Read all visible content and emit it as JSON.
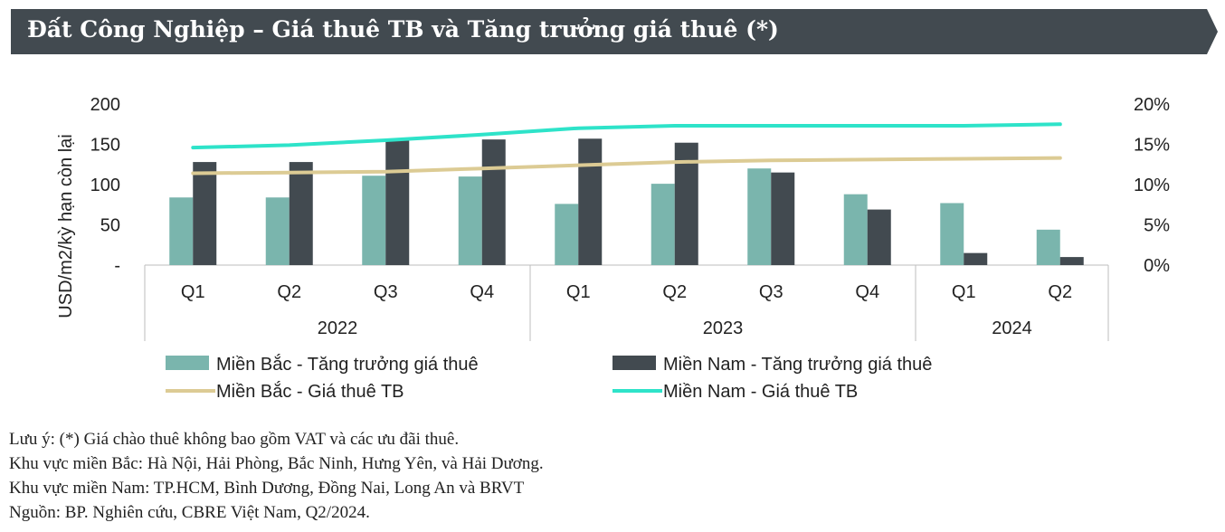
{
  "header": {
    "title": "Đất Công Nghiệp – Giá thuê TB và Tăng trưởng giá thuê (*)",
    "background": "#424a50"
  },
  "chart_data": {
    "type": "bar",
    "ylabel": "USD/m2/kỳ hạn còn lại",
    "y_left_ticks": [
      "-",
      "50",
      "100",
      "150",
      "200"
    ],
    "ylim_left": [
      0,
      200
    ],
    "y_right_ticks": [
      "0%",
      "5%",
      "10%",
      "15%",
      "20%"
    ],
    "ylim_right": [
      0,
      20
    ],
    "categories": [
      "Q1",
      "Q2",
      "Q3",
      "Q4",
      "Q1",
      "Q2",
      "Q3",
      "Q4",
      "Q1",
      "Q2"
    ],
    "groups": [
      {
        "label": "2022",
        "start": 0,
        "end": 3
      },
      {
        "label": "2023",
        "start": 4,
        "end": 7
      },
      {
        "label": "2024",
        "start": 8,
        "end": 9
      }
    ],
    "grid": false,
    "legend_position": "bottom",
    "series": [
      {
        "name": "Miền Bắc - Tăng trưởng giá thuê",
        "kind": "bar",
        "axis": "right",
        "color": "#7ab5ad",
        "values": [
          8.4,
          8.4,
          11.1,
          11.0,
          7.6,
          10.1,
          12.0,
          8.8,
          7.7,
          4.4
        ]
      },
      {
        "name": "Miền Nam - Tăng trưởng giá thuê",
        "kind": "bar",
        "axis": "right",
        "color": "#424a50",
        "values": [
          12.8,
          12.8,
          15.5,
          15.6,
          15.7,
          15.2,
          11.5,
          6.9,
          1.5,
          1.0
        ]
      },
      {
        "name": "Miền Bắc - Giá thuê TB",
        "kind": "line",
        "axis": "left",
        "color": "#dccb94",
        "values": [
          114,
          115,
          116,
          120,
          124,
          128,
          130,
          131,
          132,
          133
        ]
      },
      {
        "name": "Miền Nam - Giá thuê TB",
        "kind": "line",
        "axis": "left",
        "color": "#2ee3c9",
        "values": [
          146,
          149,
          155,
          162,
          170,
          173,
          173,
          173,
          173,
          175
        ]
      }
    ]
  },
  "notes": [
    "Lưu ý: (*) Giá chào thuê không bao gồm VAT và các ưu đãi thuê.",
    "Khu vực miền Bắc: Hà Nội, Hải Phòng, Bắc Ninh, Hưng Yên, và Hải Dương.",
    "Khu vực miền Nam: TP.HCM, Bình Dương, Đồng Nai, Long An và BRVT",
    "Nguồn: BP. Nghiên cứu, CBRE Việt Nam, Q2/2024."
  ]
}
